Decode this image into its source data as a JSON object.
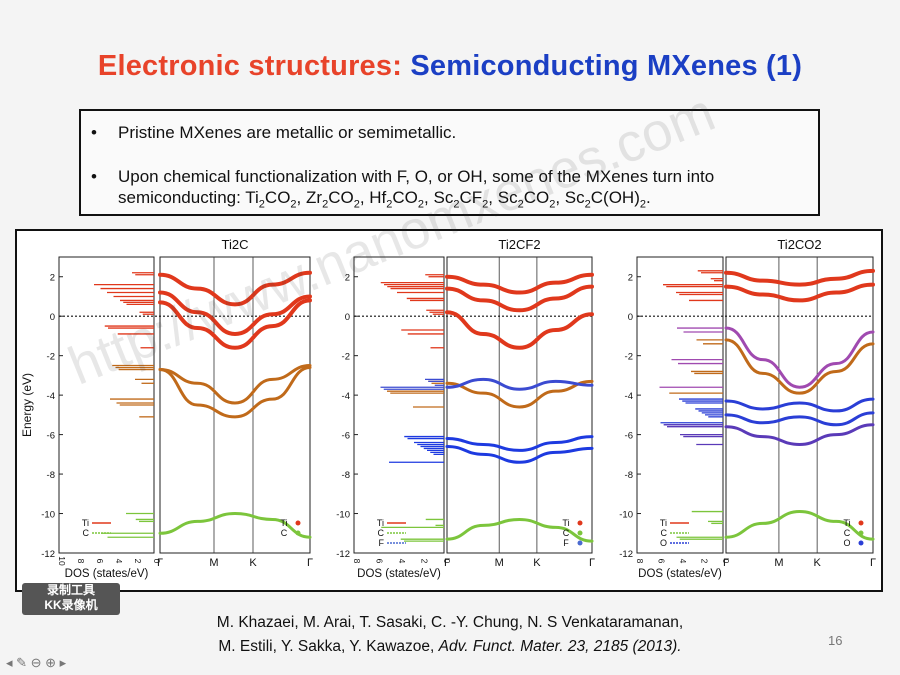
{
  "slide": {
    "title_part1": "Electronic structures:",
    "title_part2": "Semiconducting MXenes (1)",
    "bullet1": "Pristine MXenes are metallic or semimetallic.",
    "bullet2_prefix": "Upon chemical functionalization with F, O, or OH, some of the MXenes turn into semiconducting:",
    "bullet_marker": "•",
    "citation_line1": "M. Khazaei, M. Arai, T. Sasaki, C. -Y. Chung, N. S Venkataramanan,",
    "citation_line2_authors": "M. Estili, Y. Sakka, Y. Kawazoe,",
    "citation_line2_journal": "Adv. Funct. Mater. 23, 2185 (2013).",
    "page_number": "16",
    "watermark": "http://www.nanomxenes.com",
    "badge_line1": "录制工具",
    "badge_line2": "KK录像机",
    "nav_icons": "◂ ✎ ⊖ ⊕ ▸"
  },
  "compounds": [
    {
      "base": "Ti",
      "sub1": "2",
      "mid": "CO",
      "sub2": "2",
      "tail": ","
    },
    {
      "base": "Zr",
      "sub1": "2",
      "mid": "CO",
      "sub2": "2",
      "tail": ","
    },
    {
      "base": "Hf",
      "sub1": "2",
      "mid": "CO",
      "sub2": "2",
      "tail": ","
    },
    {
      "base": "Sc",
      "sub1": "2",
      "mid": "CF",
      "sub2": "2",
      "tail": ","
    },
    {
      "base": "Sc",
      "sub1": "2",
      "mid": "CO",
      "sub2": "2",
      "tail": ","
    },
    {
      "base": "Sc",
      "sub1": "2",
      "mid": "C(OH)",
      "sub2": "2",
      "tail": "."
    }
  ],
  "chart_data": [
    {
      "type": "line",
      "title": "Ti2C",
      "ylabel": "Energy (eV)",
      "xlabel_dos": "DOS (states/eV)",
      "ylim": [
        -12,
        3
      ],
      "yticks": [
        "2",
        "0",
        "-2",
        "-4",
        "-6",
        "-8",
        "-10",
        "-12"
      ],
      "dos_xticks": [
        "10",
        "8",
        "6",
        "4",
        "2",
        "0"
      ],
      "kpath": [
        "Γ",
        "M",
        "K",
        "Γ"
      ],
      "legend": [
        "Ti",
        "C"
      ],
      "fermi_level": 0,
      "bands": [
        {
          "element": "Ti",
          "color": "#e0381c",
          "x": [
            0,
            0.5,
            1,
            1.5,
            2
          ],
          "y": [
            2.1,
            1.4,
            0.6,
            1.6,
            2.2
          ]
        },
        {
          "element": "Ti",
          "color": "#e0381c",
          "x": [
            0,
            0.5,
            1,
            1.5,
            2
          ],
          "y": [
            1.2,
            0.2,
            -0.9,
            0.1,
            1.0
          ]
        },
        {
          "element": "Ti",
          "color": "#e0381c",
          "x": [
            0,
            0.5,
            1,
            1.5,
            2
          ],
          "y": [
            0.7,
            -0.6,
            -1.6,
            -0.5,
            0.8
          ]
        },
        {
          "element": "C",
          "color": "#c06a1a",
          "x": [
            0,
            0.5,
            1,
            1.5,
            2
          ],
          "y": [
            -2.7,
            -3.4,
            -4.4,
            -3.2,
            -2.5
          ]
        },
        {
          "element": "C",
          "color": "#c06a1a",
          "x": [
            0,
            0.5,
            1,
            1.5,
            2
          ],
          "y": [
            -2.7,
            -4.5,
            -5.1,
            -4.2,
            -2.6
          ]
        },
        {
          "element": "C",
          "color": "#7cc53c",
          "x": [
            0,
            0.5,
            1,
            1.5,
            2
          ],
          "y": [
            -11.0,
            -10.4,
            -10.0,
            -10.3,
            -11.2
          ]
        }
      ]
    },
    {
      "type": "line",
      "title": "Ti2CF2",
      "xlabel_dos": "DOS (states/eV)",
      "ylim": [
        -12,
        3
      ],
      "yticks": [
        "2",
        "0",
        "-2",
        "-4",
        "-6",
        "-8",
        "-10",
        "-12"
      ],
      "dos_xticks": [
        "8",
        "6",
        "4",
        "2",
        "0"
      ],
      "kpath": [
        "Γ",
        "M",
        "K",
        "Γ"
      ],
      "legend": [
        "Ti",
        "C",
        "F"
      ],
      "fermi_level": 0,
      "bands": [
        {
          "element": "Ti",
          "color": "#e0381c",
          "x": [
            0,
            0.5,
            1,
            1.5,
            2
          ],
          "y": [
            2.0,
            1.6,
            1.2,
            1.7,
            2.1
          ]
        },
        {
          "element": "Ti",
          "color": "#e0381c",
          "x": [
            0,
            0.5,
            1,
            1.5,
            2
          ],
          "y": [
            1.4,
            0.8,
            0.3,
            0.9,
            1.5
          ]
        },
        {
          "element": "Ti",
          "color": "#e0381c",
          "x": [
            0,
            0.5,
            1,
            1.5,
            2
          ],
          "y": [
            0.2,
            -0.9,
            -1.6,
            -0.7,
            0.1
          ]
        },
        {
          "element": "C",
          "color": "#c06a1a",
          "x": [
            0,
            0.5,
            1,
            1.5,
            2
          ],
          "y": [
            -3.4,
            -3.9,
            -4.6,
            -3.8,
            -3.3
          ]
        },
        {
          "element": "C",
          "color": "#3b4bd1",
          "x": [
            0,
            0.5,
            1,
            1.5,
            2
          ],
          "y": [
            -3.6,
            -3.2,
            -3.7,
            -3.3,
            -3.5
          ]
        },
        {
          "element": "F",
          "color": "#1d3ae0",
          "x": [
            0,
            0.5,
            1,
            1.5,
            2
          ],
          "y": [
            -6.2,
            -6.5,
            -6.8,
            -6.4,
            -6.1
          ]
        },
        {
          "element": "F",
          "color": "#1d3ae0",
          "x": [
            0,
            0.5,
            1,
            1.5,
            2
          ],
          "y": [
            -6.6,
            -7.0,
            -7.4,
            -6.9,
            -6.7
          ]
        },
        {
          "element": "C",
          "color": "#7cc53c",
          "x": [
            0,
            0.5,
            1,
            1.5,
            2
          ],
          "y": [
            -11.3,
            -10.6,
            -10.3,
            -10.7,
            -11.4
          ]
        }
      ]
    },
    {
      "type": "line",
      "title": "Ti2CO2",
      "xlabel_dos": "DOS (states/eV)",
      "ylim": [
        -12,
        3
      ],
      "yticks": [
        "2",
        "0",
        "-2",
        "-4",
        "-6",
        "-8",
        "-10",
        "-12"
      ],
      "dos_xticks": [
        "8",
        "6",
        "4",
        "2",
        "0"
      ],
      "kpath": [
        "Γ",
        "M",
        "K",
        "Γ"
      ],
      "legend": [
        "Ti",
        "C",
        "O"
      ],
      "fermi_level": 0,
      "bands": [
        {
          "element": "Ti",
          "color": "#e0381c",
          "x": [
            0,
            0.5,
            1,
            1.5,
            2
          ],
          "y": [
            2.2,
            1.8,
            1.6,
            1.9,
            2.3
          ]
        },
        {
          "element": "Ti",
          "color": "#e0381c",
          "x": [
            0,
            0.5,
            1,
            1.5,
            2
          ],
          "y": [
            1.5,
            1.1,
            0.8,
            1.2,
            1.6
          ]
        },
        {
          "element": "C",
          "color": "#a04ab0",
          "x": [
            0,
            0.5,
            1,
            1.5,
            2
          ],
          "y": [
            -0.6,
            -2.2,
            -3.6,
            -2.4,
            -0.8
          ]
        },
        {
          "element": "C",
          "color": "#c06a1a",
          "x": [
            0,
            0.5,
            1,
            1.5,
            2
          ],
          "y": [
            -1.2,
            -2.9,
            -3.9,
            -2.8,
            -1.4
          ]
        },
        {
          "element": "O",
          "color": "#2a3ed6",
          "x": [
            0,
            0.5,
            1,
            1.5,
            2
          ],
          "y": [
            -4.3,
            -4.7,
            -4.4,
            -4.8,
            -4.2
          ]
        },
        {
          "element": "O",
          "color": "#2a3ed6",
          "x": [
            0,
            0.5,
            1,
            1.5,
            2
          ],
          "y": [
            -5.0,
            -5.4,
            -5.1,
            -5.5,
            -4.9
          ]
        },
        {
          "element": "O",
          "color": "#5a3ab8",
          "x": [
            0,
            0.5,
            1,
            1.5,
            2
          ],
          "y": [
            -5.6,
            -6.1,
            -6.5,
            -6.0,
            -5.5
          ]
        },
        {
          "element": "C",
          "color": "#7cc53c",
          "x": [
            0,
            0.5,
            1,
            1.5,
            2
          ],
          "y": [
            -11.2,
            -10.5,
            -9.9,
            -10.4,
            -11.3
          ]
        }
      ]
    }
  ]
}
